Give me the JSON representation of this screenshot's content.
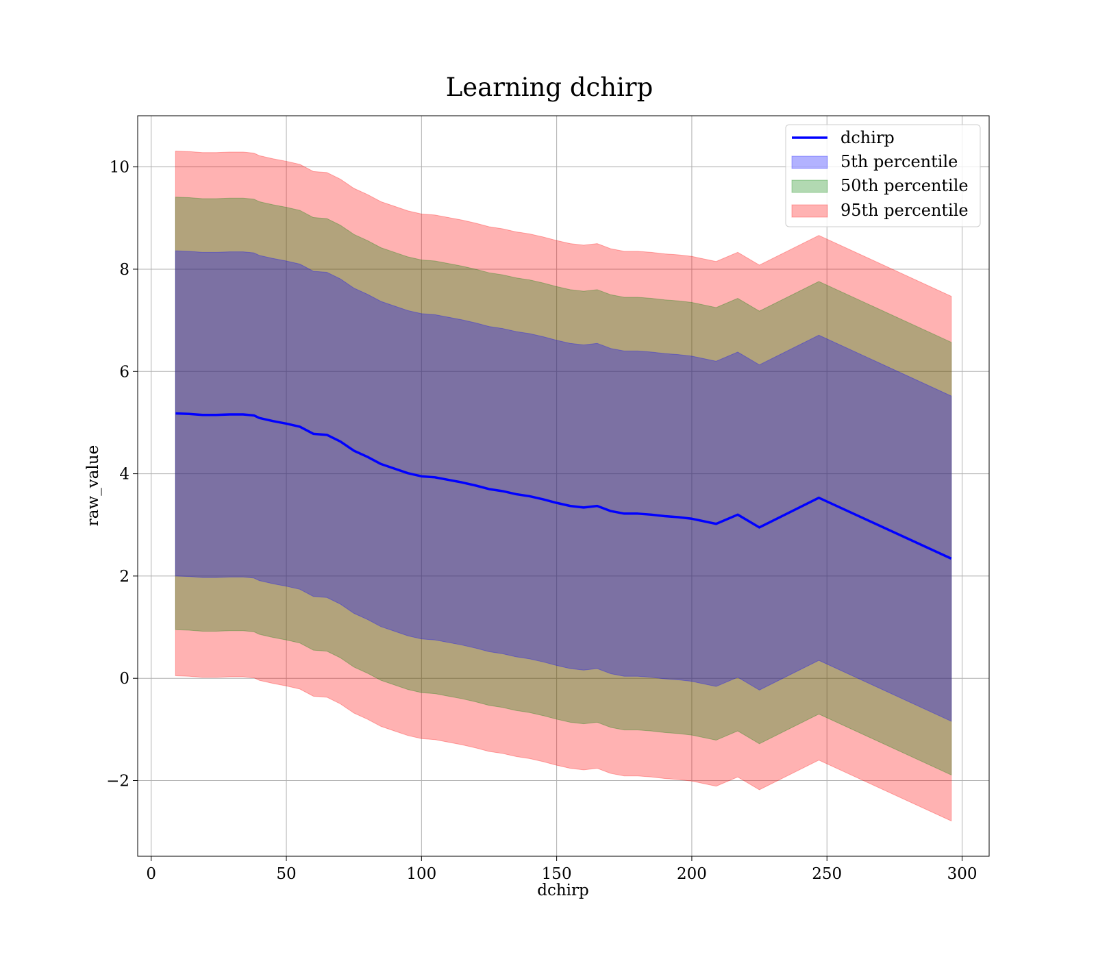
{
  "chart_data": {
    "type": "line",
    "title": "Learning dchirp",
    "xlabel": "dchirp",
    "ylabel": "raw_value",
    "xlim": [
      -5,
      310
    ],
    "ylim": [
      -3.48,
      11.0
    ],
    "xticks": [
      0,
      50,
      100,
      150,
      200,
      250,
      300
    ],
    "yticks": [
      -2,
      0,
      2,
      4,
      6,
      8,
      10
    ],
    "xtick_labels": [
      "0",
      "50",
      "100",
      "150",
      "200",
      "250",
      "300"
    ],
    "ytick_labels": [
      "−2",
      "0",
      "2",
      "4",
      "6",
      "8",
      "10"
    ],
    "grid": true,
    "legend_position": "top-right",
    "x": [
      9,
      14,
      19,
      24,
      29,
      34,
      38,
      40,
      45,
      50,
      55,
      60,
      65,
      70,
      75,
      80,
      85,
      90,
      95,
      100,
      105,
      110,
      115,
      120,
      125,
      130,
      135,
      140,
      145,
      150,
      155,
      160,
      165,
      170,
      175,
      180,
      185,
      190,
      195,
      200,
      209,
      217,
      225,
      247,
      296
    ],
    "line": {
      "name": "dchirp",
      "color": "#0000ff",
      "values": [
        5.18,
        5.17,
        5.15,
        5.15,
        5.16,
        5.16,
        5.14,
        5.09,
        5.03,
        4.98,
        4.92,
        4.78,
        4.76,
        4.63,
        4.45,
        4.33,
        4.19,
        4.1,
        4.01,
        3.95,
        3.93,
        3.88,
        3.83,
        3.77,
        3.7,
        3.66,
        3.6,
        3.56,
        3.5,
        3.43,
        3.37,
        3.34,
        3.37,
        3.27,
        3.22,
        3.22,
        3.2,
        3.17,
        3.15,
        3.12,
        3.02,
        3.2,
        2.95,
        3.53,
        2.34
      ]
    },
    "bands": [
      {
        "name": "95th percentile",
        "color": "#ff0000",
        "opacity": 0.3,
        "lower_offset": -5.13,
        "upper_offset": 5.13
      },
      {
        "name": "50th percentile",
        "color": "#008000",
        "opacity": 0.3,
        "lower_offset": -4.23,
        "upper_offset": 4.23
      },
      {
        "name": "5th percentile",
        "color": "#0000ff",
        "opacity": 0.3,
        "lower_offset": -3.18,
        "upper_offset": 3.18
      }
    ],
    "legend": [
      {
        "label": "dchirp",
        "kind": "line",
        "color": "#0000ff"
      },
      {
        "label": "5th percentile",
        "kind": "patch",
        "color": "#0000ff"
      },
      {
        "label": "50th percentile",
        "kind": "patch",
        "color": "#008000"
      },
      {
        "label": "95th percentile",
        "kind": "patch",
        "color": "#ff0000"
      }
    ]
  }
}
